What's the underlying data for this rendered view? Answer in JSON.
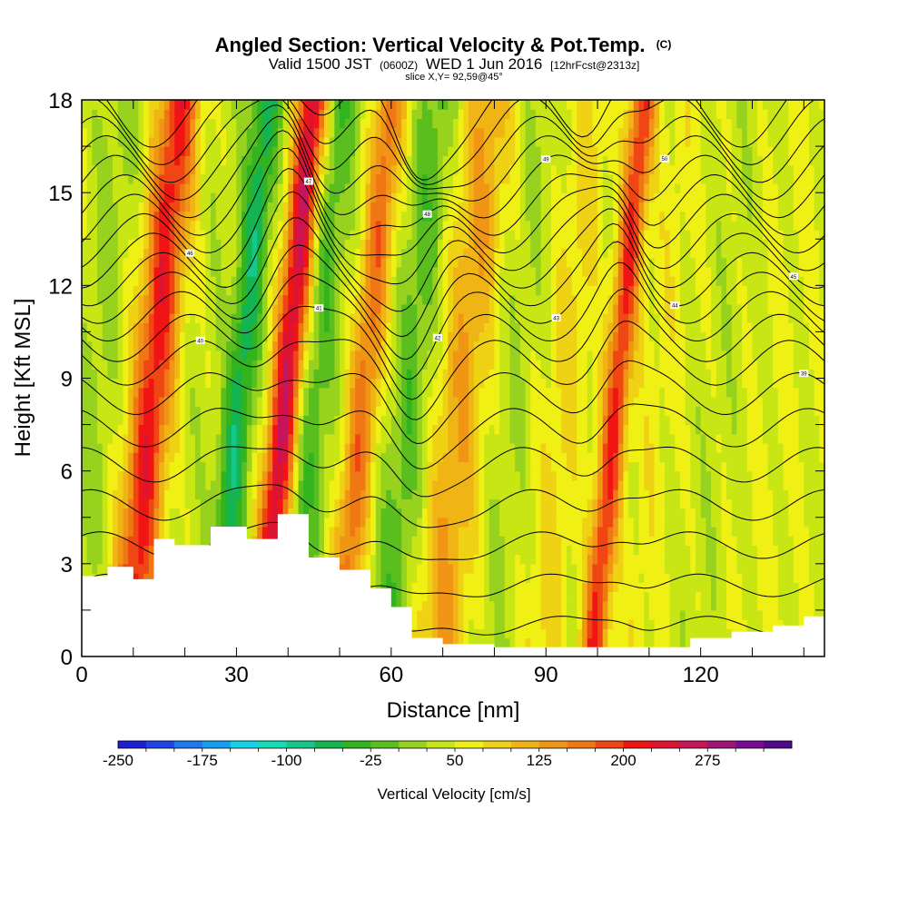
{
  "chart_data": {
    "type": "heatmap",
    "title": "Angled Section: Vertical Velocity & Pot.Temp.",
    "title_suffix": "(C)",
    "subtitle": {
      "valid": "Valid 1500 JST",
      "zulu": "(0600Z)",
      "date": "WED 1 Jun 2016",
      "forecast": "[12hrFcst@2313z]"
    },
    "slice_label": "slice X,Y= 92,59@45°",
    "xlabel": "Distance [nm]",
    "ylabel": "Height [Kft MSL]",
    "xlim": [
      0,
      144
    ],
    "ylim": [
      0,
      18
    ],
    "x_ticks": [
      "0",
      "30",
      "60",
      "90",
      "120"
    ],
    "y_ticks": [
      "0",
      "3",
      "6",
      "9",
      "12",
      "15",
      "18"
    ],
    "colorbar": {
      "title": "Vertical Velocity [cm/s]",
      "tick_labels": [
        "-250",
        "-175",
        "-100",
        "-25",
        "50",
        "125",
        "200",
        "275"
      ],
      "colors": [
        "#1e1ed2",
        "#1e46e6",
        "#1e78f0",
        "#14a0f0",
        "#14d2e6",
        "#14dcb4",
        "#14c88c",
        "#14b450",
        "#32b41e",
        "#5abe1e",
        "#96d21e",
        "#c8e614",
        "#f0f014",
        "#f0d214",
        "#f0b414",
        "#f09614",
        "#f07814",
        "#f04614",
        "#f01414",
        "#dc1432",
        "#c8145a",
        "#a01478",
        "#780a96",
        "#500a8c"
      ]
    },
    "terrain_kft": [
      [
        0,
        2.6
      ],
      [
        5,
        2.9
      ],
      [
        10,
        2.5
      ],
      [
        14,
        3.8
      ],
      [
        18,
        3.6
      ],
      [
        25,
        4.2
      ],
      [
        32,
        3.8
      ],
      [
        38,
        4.6
      ],
      [
        44,
        3.2
      ],
      [
        50,
        2.8
      ],
      [
        56,
        2.2
      ],
      [
        60,
        1.6
      ],
      [
        64,
        0.6
      ],
      [
        70,
        0.4
      ],
      [
        80,
        0.3
      ],
      [
        95,
        0.3
      ],
      [
        110,
        0.3
      ],
      [
        118,
        0.6
      ],
      [
        126,
        0.8
      ],
      [
        134,
        1.0
      ],
      [
        140,
        1.3
      ],
      [
        144,
        1.3
      ]
    ],
    "vertical_velocity_bands": [
      {
        "x": 3,
        "w": 4,
        "v": -30
      },
      {
        "x": 14,
        "w": 4,
        "v": 170
      },
      {
        "x": 23,
        "w": 4,
        "v": -10
      },
      {
        "x": 31,
        "w": 3,
        "v": -110
      },
      {
        "x": 40,
        "w": 3,
        "v": 220
      },
      {
        "x": 45,
        "w": 4,
        "v": -70
      },
      {
        "x": 55,
        "w": 3,
        "v": 120
      },
      {
        "x": 64,
        "w": 4,
        "v": -60
      },
      {
        "x": 74,
        "w": 5,
        "v": 80
      },
      {
        "x": 84,
        "w": 4,
        "v": -20
      },
      {
        "x": 94,
        "w": 4,
        "v": 40
      },
      {
        "x": 104,
        "w": 2.5,
        "v": 160
      },
      {
        "x": 112,
        "w": 4,
        "v": 20
      },
      {
        "x": 124,
        "w": 5,
        "v": -10
      },
      {
        "x": 136,
        "w": 5,
        "v": 10
      }
    ],
    "contour_base_kft": [
      1.0,
      2.3,
      3.6,
      4.9,
      6.2,
      7.4,
      8.5,
      9.5,
      10.3,
      11.0,
      11.6,
      12.2,
      12.8,
      13.4,
      14.0,
      14.6,
      15.2,
      15.8,
      16.4,
      17.0,
      17.6
    ],
    "contour_labels": [
      "39",
      "40",
      "41",
      "42",
      "43",
      "44",
      "45",
      "46",
      "47",
      "48",
      "49",
      "50"
    ]
  }
}
